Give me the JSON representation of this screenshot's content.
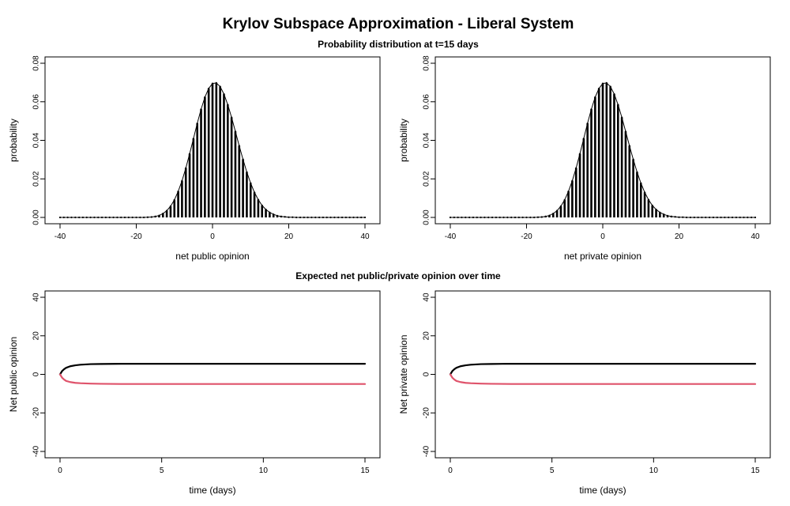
{
  "figure": {
    "title": "Krylov Subspace Approximation - Liberal System",
    "top_subtitle": "Probability distribution at t=15 days",
    "bottom_subtitle": "Expected net public/private opinion over time"
  },
  "chart_data": [
    {
      "type": "bar",
      "description_label": "public distribution",
      "xlabel": "net public opinion",
      "ylabel": "probability",
      "xlim": [
        -40,
        40
      ],
      "ylim": [
        0,
        0.08
      ],
      "xticks": [
        -40,
        -20,
        0,
        20,
        40
      ],
      "yticks": [
        0.0,
        0.02,
        0.04,
        0.06,
        0.08
      ],
      "ytick_labels": [
        "0.00",
        "0.02",
        "0.04",
        "0.06",
        "0.08"
      ],
      "grid": false,
      "x": [
        -40,
        -39,
        -38,
        -37,
        -36,
        -35,
        -34,
        -33,
        -32,
        -31,
        -30,
        -29,
        -28,
        -27,
        -26,
        -25,
        -24,
        -23,
        -22,
        -21,
        -20,
        -19,
        -18,
        -17,
        -16,
        -15,
        -14,
        -13,
        -12,
        -11,
        -10,
        -9,
        -8,
        -7,
        -6,
        -5,
        -4,
        -3,
        -2,
        -1,
        0,
        1,
        2,
        3,
        4,
        5,
        6,
        7,
        8,
        9,
        10,
        11,
        12,
        13,
        14,
        15,
        16,
        17,
        18,
        19,
        20,
        21,
        22,
        23,
        24,
        25,
        26,
        27,
        28,
        29,
        30,
        31,
        32,
        33,
        34,
        35,
        36,
        37,
        38,
        39,
        40
      ],
      "values": [
        0,
        0,
        0,
        0,
        0,
        0,
        0,
        0,
        0,
        0,
        0,
        0,
        0,
        0,
        0,
        0,
        0,
        0,
        0,
        0,
        0,
        0,
        0,
        0.0001,
        0.0002,
        0.0005,
        0.001,
        0.002,
        0.0035,
        0.0058,
        0.0091,
        0.0135,
        0.019,
        0.0256,
        0.033,
        0.0409,
        0.0488,
        0.0561,
        0.0624,
        0.0669,
        0.0695,
        0.0698,
        0.0679,
        0.064,
        0.0585,
        0.0519,
        0.0446,
        0.0372,
        0.0301,
        0.0235,
        0.0178,
        0.013,
        0.0092,
        0.0062,
        0.0041,
        0.0026,
        0.0016,
        0.0009,
        0.0005,
        0.0003,
        0.0001,
        0.0001,
        0,
        0,
        0,
        0,
        0,
        0,
        0,
        0,
        0,
        0,
        0,
        0,
        0,
        0,
        0,
        0,
        0,
        0,
        0
      ],
      "envelope_peak": 0.077
    },
    {
      "type": "bar",
      "description_label": "private distribution",
      "xlabel": "net private opinion",
      "ylabel": "probability",
      "xlim": [
        -40,
        40
      ],
      "ylim": [
        0,
        0.08
      ],
      "xticks": [
        -40,
        -20,
        0,
        20,
        40
      ],
      "yticks": [
        0.0,
        0.02,
        0.04,
        0.06,
        0.08
      ],
      "ytick_labels": [
        "0.00",
        "0.02",
        "0.04",
        "0.06",
        "0.08"
      ],
      "grid": false,
      "x": [
        -40,
        -39,
        -38,
        -37,
        -36,
        -35,
        -34,
        -33,
        -32,
        -31,
        -30,
        -29,
        -28,
        -27,
        -26,
        -25,
        -24,
        -23,
        -22,
        -21,
        -20,
        -19,
        -18,
        -17,
        -16,
        -15,
        -14,
        -13,
        -12,
        -11,
        -10,
        -9,
        -8,
        -7,
        -6,
        -5,
        -4,
        -3,
        -2,
        -1,
        0,
        1,
        2,
        3,
        4,
        5,
        6,
        7,
        8,
        9,
        10,
        11,
        12,
        13,
        14,
        15,
        16,
        17,
        18,
        19,
        20,
        21,
        22,
        23,
        24,
        25,
        26,
        27,
        28,
        29,
        30,
        31,
        32,
        33,
        34,
        35,
        36,
        37,
        38,
        39,
        40
      ],
      "values": [
        0,
        0,
        0,
        0,
        0,
        0,
        0,
        0,
        0,
        0,
        0,
        0,
        0,
        0,
        0,
        0,
        0,
        0,
        0,
        0,
        0,
        0,
        0,
        0.0001,
        0.0002,
        0.0005,
        0.001,
        0.002,
        0.0035,
        0.0058,
        0.0091,
        0.0135,
        0.019,
        0.0256,
        0.033,
        0.0409,
        0.0488,
        0.0561,
        0.0624,
        0.0669,
        0.0695,
        0.0698,
        0.0679,
        0.064,
        0.0585,
        0.0519,
        0.0446,
        0.0372,
        0.0301,
        0.0235,
        0.0178,
        0.013,
        0.0092,
        0.0062,
        0.0041,
        0.0026,
        0.0016,
        0.0009,
        0.0005,
        0.0003,
        0.0001,
        0.0001,
        0,
        0,
        0,
        0,
        0,
        0,
        0,
        0,
        0,
        0,
        0,
        0,
        0,
        0,
        0,
        0,
        0,
        0,
        0
      ],
      "envelope_peak": 0.077
    },
    {
      "type": "line",
      "xlabel": "time (days)",
      "ylabel": "Net public opinion",
      "xlim": [
        0,
        15
      ],
      "ylim": [
        -40,
        40
      ],
      "xticks": [
        0,
        5,
        10,
        15
      ],
      "yticks": [
        -40,
        -20,
        0,
        20,
        40
      ],
      "grid": false,
      "series": [
        {
          "color": "#000000",
          "x": [
            0,
            0.1,
            0.2,
            0.3,
            0.5,
            0.75,
            1,
            1.5,
            2,
            3,
            5,
            7.5,
            10,
            12.5,
            15
          ],
          "y": [
            0,
            1.7,
            2.7,
            3.4,
            4.2,
            4.7,
            5.0,
            5.3,
            5.4,
            5.5,
            5.5,
            5.5,
            5.5,
            5.5,
            5.5
          ]
        },
        {
          "color": "#DF536B",
          "x": [
            0,
            0.1,
            0.2,
            0.3,
            0.5,
            0.75,
            1,
            1.5,
            2,
            3,
            5,
            7.5,
            10,
            12.5,
            15
          ],
          "y": [
            0,
            -1.7,
            -2.7,
            -3.4,
            -4.0,
            -4.4,
            -4.6,
            -4.8,
            -4.9,
            -5.0,
            -5.0,
            -5.0,
            -5.0,
            -5.0,
            -5.0
          ]
        }
      ]
    },
    {
      "type": "line",
      "xlabel": "time (days)",
      "ylabel": "Net private opinion",
      "xlim": [
        0,
        15
      ],
      "ylim": [
        -40,
        40
      ],
      "xticks": [
        0,
        5,
        10,
        15
      ],
      "yticks": [
        -40,
        -20,
        0,
        20,
        40
      ],
      "grid": false,
      "series": [
        {
          "color": "#000000",
          "x": [
            0,
            0.1,
            0.2,
            0.3,
            0.5,
            0.75,
            1,
            1.5,
            2,
            3,
            5,
            7.5,
            10,
            12.5,
            15
          ],
          "y": [
            0,
            1.7,
            2.7,
            3.4,
            4.2,
            4.7,
            5.0,
            5.3,
            5.4,
            5.5,
            5.5,
            5.5,
            5.5,
            5.5,
            5.5
          ]
        },
        {
          "color": "#DF536B",
          "x": [
            0,
            0.1,
            0.2,
            0.3,
            0.5,
            0.75,
            1,
            1.5,
            2,
            3,
            5,
            7.5,
            10,
            12.5,
            15
          ],
          "y": [
            0,
            -1.7,
            -2.7,
            -3.4,
            -4.0,
            -4.4,
            -4.6,
            -4.8,
            -4.9,
            -5.0,
            -5.0,
            -5.0,
            -5.0,
            -5.0,
            -5.0
          ]
        }
      ]
    }
  ]
}
